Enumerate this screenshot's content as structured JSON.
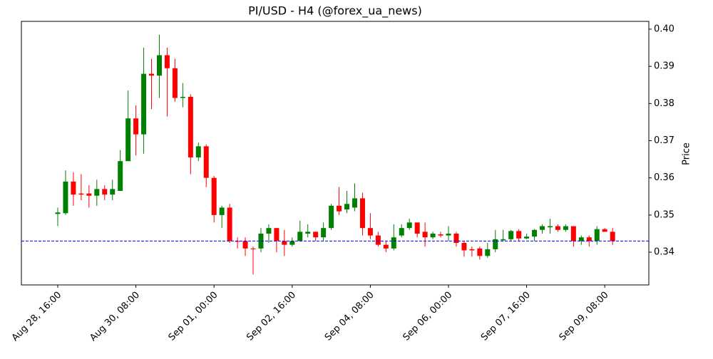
{
  "chart_data": {
    "type": "candlestick",
    "title": "PI/USD - H4 (@forex_ua_news)",
    "y_label": "Price",
    "categories": [
      "Aug 28, 16:00",
      null,
      null,
      null,
      null,
      null,
      null,
      null,
      null,
      null,
      "Aug 30, 08:00",
      null,
      null,
      null,
      null,
      null,
      null,
      null,
      null,
      null,
      "Sep 01, 00:00",
      null,
      null,
      null,
      null,
      null,
      null,
      null,
      null,
      null,
      "Sep 02, 16:00",
      null,
      null,
      null,
      null,
      null,
      null,
      null,
      null,
      null,
      "Sep 04, 08:00",
      null,
      null,
      null,
      null,
      null,
      null,
      null,
      null,
      null,
      "Sep 06, 00:00",
      null,
      null,
      null,
      null,
      null,
      null,
      null,
      null,
      null,
      "Sep 07, 16:00",
      null,
      null,
      null,
      null,
      null,
      null,
      null,
      null,
      null,
      "Sep 09, 08:00",
      null
    ],
    "open": [
      0.3503,
      0.3505,
      0.359,
      0.3558,
      0.3558,
      0.3552,
      0.357,
      0.3555,
      0.3565,
      0.3645,
      0.376,
      0.3717,
      0.388,
      0.3875,
      0.393,
      0.3895,
      0.3815,
      0.3818,
      0.3655,
      0.3685,
      0.36,
      0.35,
      0.352,
      0.343,
      0.343,
      0.341,
      0.341,
      0.345,
      0.3465,
      0.343,
      0.342,
      0.343,
      0.345,
      0.3455,
      0.344,
      0.3465,
      0.3525,
      0.3515,
      0.352,
      0.3545,
      0.3465,
      0.3445,
      0.342,
      0.341,
      0.3445,
      0.3465,
      0.348,
      0.3455,
      0.344,
      0.3448,
      0.3445,
      0.345,
      0.3425,
      0.3408,
      0.341,
      0.339,
      0.3408,
      0.3432,
      0.3435,
      0.3457,
      0.3437,
      0.3442,
      0.346,
      0.3467,
      0.347,
      0.346,
      0.347,
      0.343,
      0.344,
      0.343,
      0.3462,
      0.3455
    ],
    "high": [
      0.352,
      0.362,
      0.3615,
      0.361,
      0.358,
      0.3595,
      0.358,
      0.3595,
      0.3675,
      0.3835,
      0.3795,
      0.395,
      0.392,
      0.3985,
      0.395,
      0.392,
      0.3855,
      0.3825,
      0.3695,
      0.369,
      0.3605,
      0.3525,
      0.353,
      0.344,
      0.344,
      0.3415,
      0.3465,
      0.3475,
      0.3465,
      0.346,
      0.344,
      0.3485,
      0.3475,
      0.3455,
      0.348,
      0.353,
      0.3575,
      0.3565,
      0.3585,
      0.356,
      0.3505,
      0.3455,
      0.343,
      0.3475,
      0.3475,
      0.349,
      0.348,
      0.348,
      0.3455,
      0.3455,
      0.347,
      0.3455,
      0.343,
      0.3415,
      0.3415,
      0.3425,
      0.346,
      0.346,
      0.346,
      0.3462,
      0.345,
      0.3462,
      0.3475,
      0.349,
      0.3475,
      0.3475,
      0.347,
      0.3445,
      0.3445,
      0.347,
      0.3465,
      0.3465
    ],
    "low": [
      0.347,
      0.35,
      0.3525,
      0.354,
      0.352,
      0.3525,
      0.354,
      0.354,
      0.3565,
      0.3645,
      0.366,
      0.3665,
      0.3785,
      0.3815,
      0.3765,
      0.3805,
      0.379,
      0.361,
      0.3645,
      0.3575,
      0.348,
      0.3465,
      0.3425,
      0.341,
      0.339,
      0.334,
      0.34,
      0.3425,
      0.34,
      0.339,
      0.3415,
      0.343,
      0.344,
      0.343,
      0.343,
      0.346,
      0.35,
      0.3505,
      0.351,
      0.3445,
      0.3435,
      0.3415,
      0.34,
      0.3405,
      0.344,
      0.346,
      0.344,
      0.3415,
      0.3435,
      0.344,
      0.343,
      0.3415,
      0.3388,
      0.3388,
      0.338,
      0.3385,
      0.34,
      0.343,
      0.343,
      0.343,
      0.3435,
      0.343,
      0.345,
      0.345,
      0.3455,
      0.3455,
      0.3415,
      0.342,
      0.3415,
      0.342,
      0.3455,
      0.342
    ],
    "close": [
      0.3507,
      0.359,
      0.3555,
      0.3555,
      0.3552,
      0.357,
      0.3555,
      0.357,
      0.3645,
      0.376,
      0.3717,
      0.388,
      0.3875,
      0.393,
      0.3895,
      0.3815,
      0.3818,
      0.3655,
      0.3685,
      0.36,
      0.35,
      0.352,
      0.343,
      0.3428,
      0.341,
      0.3408,
      0.345,
      0.3465,
      0.343,
      0.342,
      0.343,
      0.3455,
      0.3455,
      0.344,
      0.3465,
      0.3525,
      0.351,
      0.353,
      0.3545,
      0.3465,
      0.3445,
      0.342,
      0.341,
      0.344,
      0.3465,
      0.348,
      0.345,
      0.344,
      0.345,
      0.3445,
      0.345,
      0.3425,
      0.3405,
      0.3405,
      0.339,
      0.3408,
      0.3435,
      0.3435,
      0.3457,
      0.3437,
      0.3442,
      0.346,
      0.347,
      0.347,
      0.346,
      0.347,
      0.343,
      0.344,
      0.343,
      0.3462,
      0.3455,
      0.343
    ],
    "up_color": "#008000",
    "down_color": "#ff0000",
    "hline": {
      "value": 0.343,
      "color": "#0000ff"
    },
    "ylim": [
      0.3312,
      0.4021
    ],
    "yticks": [
      0.34,
      0.35,
      0.36,
      0.37,
      0.38,
      0.39,
      {
        "value": 0.4,
        "label": "0.40"
      }
    ],
    "y_axis_side": "right"
  }
}
